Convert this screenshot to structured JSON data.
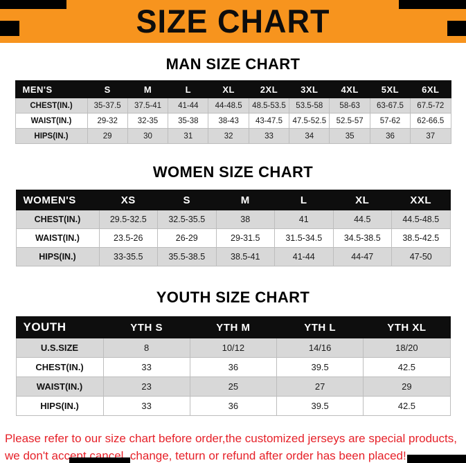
{
  "banner": {
    "title": "SIZE CHART"
  },
  "colors": {
    "banner_orange": "#F7941E",
    "table_header_black": "#0E0E0E",
    "row_shade": "#D8D8D8",
    "footer_red": "#E62129"
  },
  "sections": [
    {
      "heading": "MAN SIZE CHART",
      "table": {
        "header": [
          "MEN'S",
          "S",
          "M",
          "L",
          "XL",
          "2XL",
          "3XL",
          "4XL",
          "5XL",
          "6XL"
        ],
        "rows": [
          [
            "CHEST(IN.)",
            "35-37.5",
            "37.5-41",
            "41-44",
            "44-48.5",
            "48.5-53.5",
            "53.5-58",
            "58-63",
            "63-67.5",
            "67.5-72"
          ],
          [
            "WAIST(IN.)",
            "29-32",
            "32-35",
            "35-38",
            "38-43",
            "43-47.5",
            "47.5-52.5",
            "52.5-57",
            "57-62",
            "62-66.5"
          ],
          [
            "HIPS(IN.)",
            "29",
            "30",
            "31",
            "32",
            "33",
            "34",
            "35",
            "36",
            "37"
          ]
        ]
      }
    },
    {
      "heading": "WOMEN SIZE CHART",
      "table": {
        "header": [
          "WOMEN'S",
          "XS",
          "S",
          "M",
          "L",
          "XL",
          "XXL"
        ],
        "rows": [
          [
            "CHEST(IN.)",
            "29.5-32.5",
            "32.5-35.5",
            "38",
            "41",
            "44.5",
            "44.5-48.5"
          ],
          [
            "WAIST(IN.)",
            "23.5-26",
            "26-29",
            "29-31.5",
            "31.5-34.5",
            "34.5-38.5",
            "38.5-42.5"
          ],
          [
            "HIPS(IN.)",
            "33-35.5",
            "35.5-38.5",
            "38.5-41",
            "41-44",
            "44-47",
            "47-50"
          ]
        ]
      }
    },
    {
      "heading": "YOUTH SIZE CHART",
      "table": {
        "header": [
          "YOUTH",
          "YTH S",
          "YTH M",
          "YTH L",
          "YTH XL"
        ],
        "rows": [
          [
            "U.S.SIZE",
            "8",
            "10/12",
            "14/16",
            "18/20"
          ],
          [
            "CHEST(IN.)",
            "33",
            "36",
            "39.5",
            "42.5"
          ],
          [
            "WAIST(IN.)",
            "23",
            "25",
            "27",
            "29"
          ],
          [
            "HIPS(IN.)",
            "33",
            "36",
            "39.5",
            "42.5"
          ]
        ]
      }
    }
  ],
  "footer": {
    "line1": "Please refer to our size chart before order,the customized jerseys are special products,",
    "line2": "we don't accept cancel, change, teturn or refund after order has been placed!"
  }
}
